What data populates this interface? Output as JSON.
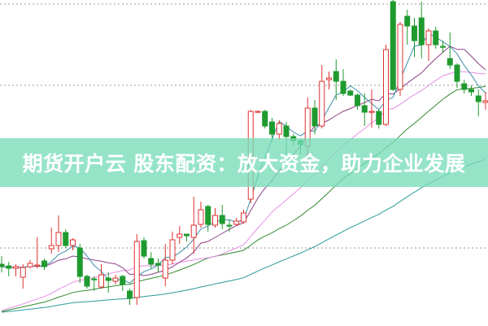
{
  "banner": {
    "title": "期货开户云 股东配资：放大资金，助力企业发展"
  },
  "chart_data": {
    "type": "candlestick",
    "title": "",
    "xlabel": "",
    "ylabel": "",
    "ylim": [
      0,
      40
    ],
    "grid": {
      "horizontal_dotted": [
        9.5,
        29.5,
        39.5
      ]
    },
    "colors": {
      "up": "#e03030",
      "down": "#1f9a2f",
      "ma5": "#3b8ea8",
      "ma10": "#8e3f86",
      "ma20": "#e88ee8",
      "ma30": "#2f8a2f",
      "ma60": "#2b9a9a",
      "banner": "#78dcb9"
    },
    "moving_averages": [
      5,
      10,
      20,
      30,
      60
    ],
    "candles_ohlc": [
      [
        7.5,
        8.5,
        6.5,
        7.2
      ],
      [
        7.3,
        7.8,
        6.0,
        7.0
      ],
      [
        7.0,
        7.5,
        6.0,
        7.2
      ],
      [
        5.9,
        7.5,
        4.5,
        7.1
      ],
      [
        7.2,
        8.0,
        7.0,
        7.6
      ],
      [
        7.3,
        10.8,
        7.0,
        7.4
      ],
      [
        7.9,
        8.2,
        6.8,
        7.2
      ],
      [
        9.4,
        12.0,
        8.8,
        9.8
      ],
      [
        9.8,
        13.5,
        9.0,
        11.4
      ],
      [
        11.4,
        11.8,
        9.5,
        9.8
      ],
      [
        9.8,
        10.7,
        9.2,
        10.5
      ],
      [
        9.5,
        10.0,
        5.2,
        6.0
      ],
      [
        6.0,
        6.2,
        4.5,
        4.8
      ],
      [
        5.7,
        6.0,
        4.2,
        5.6
      ],
      [
        4.7,
        7.5,
        4.5,
        6.2
      ],
      [
        5.8,
        6.5,
        4.0,
        5.5
      ],
      [
        5.4,
        6.2,
        5.0,
        5.8
      ],
      [
        6.0,
        6.2,
        4.2,
        5.0
      ],
      [
        4.2,
        4.5,
        2.5,
        3.3
      ],
      [
        3.4,
        11.2,
        2.5,
        10.3
      ],
      [
        10.4,
        10.8,
        8.2,
        8.5
      ],
      [
        8.2,
        9.0,
        7.0,
        7.5
      ],
      [
        7.6,
        8.2,
        6.5,
        7.4
      ],
      [
        5.8,
        10.0,
        4.8,
        8.0
      ],
      [
        8.0,
        11.5,
        7.5,
        10.5
      ],
      [
        10.8,
        12.2,
        10.0,
        11.2
      ],
      [
        11.2,
        11.2,
        10.3,
        11.0
      ],
      [
        10.8,
        15.8,
        8.8,
        12.3
      ],
      [
        12.4,
        15.2,
        12.0,
        14.2
      ],
      [
        14.6,
        14.8,
        11.5,
        12.4
      ],
      [
        12.3,
        14.4,
        12.0,
        13.5
      ],
      [
        13.5,
        14.8,
        11.8,
        12.5
      ],
      [
        12.3,
        13.0,
        11.5,
        12.2
      ],
      [
        12.4,
        13.2,
        12.2,
        12.8
      ],
      [
        12.7,
        14.2,
        12.5,
        13.8
      ],
      [
        15.5,
        26.5,
        15.0,
        26.3
      ],
      [
        26.2,
        26.4,
        26.2,
        26.3
      ],
      [
        26.3,
        26.5,
        24.2,
        24.5
      ],
      [
        25.0,
        25.5,
        22.5,
        23.5
      ],
      [
        23.5,
        25.2,
        22.8,
        24.8
      ],
      [
        24.5,
        25.0,
        21.0,
        23.2
      ],
      [
        23.2,
        23.5,
        22.0,
        22.7
      ],
      [
        22.7,
        22.9,
        21.0,
        22.2
      ],
      [
        22.0,
        28.0,
        19.5,
        26.7
      ],
      [
        26.7,
        27.7,
        23.5,
        24.5
      ],
      [
        24.5,
        32.0,
        24.2,
        30.0
      ],
      [
        30.2,
        31.2,
        29.0,
        30.4
      ],
      [
        31.2,
        32.7,
        27.7,
        30.0
      ],
      [
        30.0,
        31.5,
        28.2,
        28.5
      ],
      [
        28.8,
        29.0,
        28.2,
        28.3
      ],
      [
        28.3,
        28.5,
        26.5,
        27.0
      ],
      [
        27.0,
        28.5,
        24.5,
        26.2
      ],
      [
        26.2,
        29.0,
        24.3,
        26.3
      ],
      [
        26.3,
        26.5,
        24.2,
        24.7
      ],
      [
        24.7,
        34.5,
        24.5,
        33.9
      ],
      [
        39.8,
        40.0,
        28.8,
        29.0
      ],
      [
        29.0,
        37.3,
        28.2,
        37.0
      ],
      [
        38.0,
        38.8,
        34.5,
        36.8
      ],
      [
        36.8,
        37.8,
        33.0,
        35.0
      ],
      [
        37.8,
        39.8,
        32.8,
        34.5
      ],
      [
        34.5,
        36.5,
        32.5,
        36.2
      ],
      [
        36.2,
        36.7,
        34.0,
        34.5
      ],
      [
        34.3,
        35.0,
        33.5,
        34.2
      ],
      [
        32.8,
        36.0,
        31.5,
        32.0
      ],
      [
        32.0,
        32.2,
        29.2,
        30.0
      ],
      [
        29.7,
        30.2,
        28.5,
        29.0
      ],
      [
        29.0,
        29.5,
        28.2,
        28.7
      ],
      [
        28.2,
        29.0,
        25.7,
        27.5
      ],
      [
        27.4,
        28.7,
        26.5,
        27.6
      ]
    ]
  }
}
